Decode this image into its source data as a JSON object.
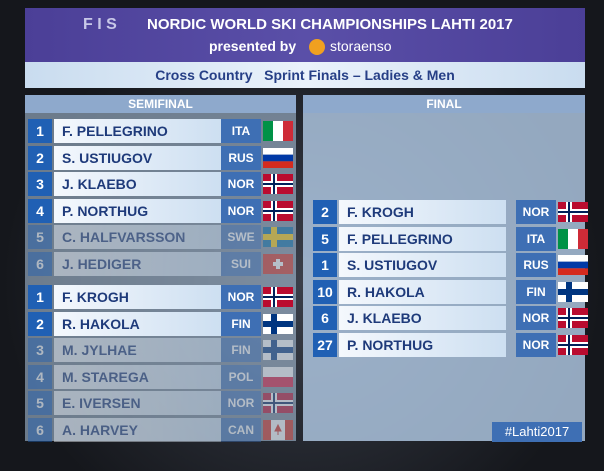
{
  "header": {
    "logo": "F I S",
    "title": "NORDIC WORLD SKI CHAMPIONSHIPS LAHTI 2017",
    "presented_by": "presented by",
    "sponsor": "storaenso",
    "subtitle": "Cross Country   Sprint Finals – Ladies & Men"
  },
  "semifinal": {
    "title": "SEMIFINAL",
    "heats": [
      [
        {
          "rank": 1,
          "name": "F. PELLEGRINO",
          "country": "ITA"
        },
        {
          "rank": 2,
          "name": "S. USTIUGOV",
          "country": "RUS"
        },
        {
          "rank": 3,
          "name": "J. KLAEBO",
          "country": "NOR"
        },
        {
          "rank": 4,
          "name": "P. NORTHUG",
          "country": "NOR"
        },
        {
          "rank": 5,
          "name": "C. HALFVARSSON",
          "country": "SWE"
        },
        {
          "rank": 6,
          "name": "J. HEDIGER",
          "country": "SUI"
        }
      ],
      [
        {
          "rank": 1,
          "name": "F. KROGH",
          "country": "NOR"
        },
        {
          "rank": 2,
          "name": "R. HAKOLA",
          "country": "FIN"
        },
        {
          "rank": 3,
          "name": "M. JYLHAE",
          "country": "FIN"
        },
        {
          "rank": 4,
          "name": "M. STAREGA",
          "country": "POL"
        },
        {
          "rank": 5,
          "name": "E. IVERSEN",
          "country": "NOR"
        },
        {
          "rank": 6,
          "name": "A. HARVEY",
          "country": "CAN"
        }
      ]
    ]
  },
  "final": {
    "title": "FINAL",
    "rows": [
      {
        "bib": 2,
        "name": "F. KROGH",
        "country": "NOR"
      },
      {
        "bib": 5,
        "name": "F. PELLEGRINO",
        "country": "ITA"
      },
      {
        "bib": 1,
        "name": "S. USTIUGOV",
        "country": "RUS"
      },
      {
        "bib": 10,
        "name": "R. HAKOLA",
        "country": "FIN"
      },
      {
        "bib": 6,
        "name": "J. KLAEBO",
        "country": "NOR"
      },
      {
        "bib": 27,
        "name": "P. NORTHUG",
        "country": "NOR"
      }
    ]
  },
  "footer": {
    "hashtag": "#Lahti2017"
  }
}
